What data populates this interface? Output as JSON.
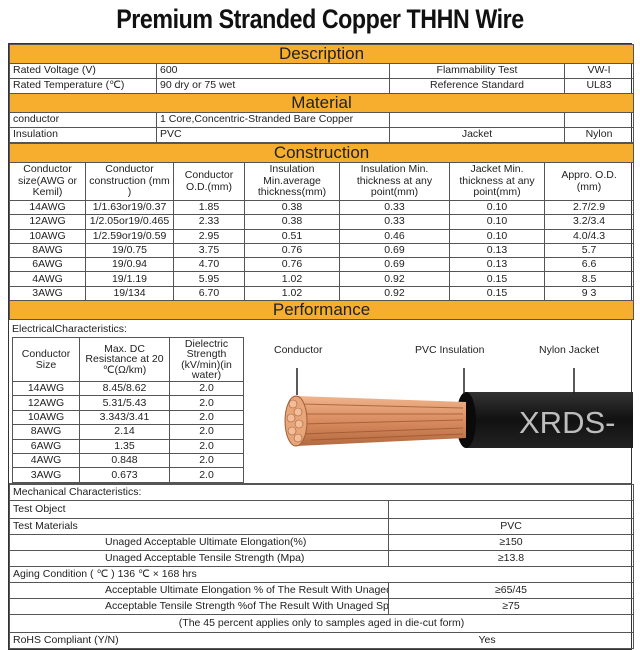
{
  "title": "Premium Stranded Copper THHN Wire",
  "description": {
    "header": "Description",
    "rows": [
      [
        "Rated Voltage (V)",
        "600",
        "Flammability Test",
        "VW-I"
      ],
      [
        "Rated Temperature (℃)",
        "90 dry or 75 wet",
        "Reference Standard",
        "UL83"
      ]
    ]
  },
  "material": {
    "header": "Material",
    "rows": [
      [
        "conductor",
        "1 Core,Concentric-Stranded Bare Copper",
        "",
        ""
      ],
      [
        "Insulation",
        "PVC",
        "Jacket",
        "Nylon"
      ]
    ]
  },
  "construction": {
    "header": "Construction",
    "columns": [
      "Conductor size(AWG or Kemil)",
      "Conductor construction (mm )",
      "Conductor O.D.(mm)",
      "Insulation Min.average thickness(mm)",
      "Insulation Min. thickness at any point(mm)",
      "Jacket Min. thickness at any point(mm)",
      "Appro. O.D. (mm)"
    ],
    "rows": [
      [
        "14AWG",
        "1/1.63or19/0.37",
        "1.85",
        "0.38",
        "0.33",
        "0.10",
        "2.7/2.9"
      ],
      [
        "12AWG",
        "1/2.05or19/0.465",
        "2.33",
        "0.38",
        "0.33",
        "0.10",
        "3.2/3.4"
      ],
      [
        "10AWG",
        "1/2.59or19/0.59",
        "2.95",
        "0.51",
        "0.46",
        "0.10",
        "4.0/4.3"
      ],
      [
        "8AWG",
        "19/0.75",
        "3.75",
        "0.76",
        "0.69",
        "0.13",
        "5.7"
      ],
      [
        "6AWG",
        "19/0.94",
        "4.70",
        "0.76",
        "0.69",
        "0.13",
        "6.6"
      ],
      [
        "4AWG",
        "19/1.19",
        "5.95",
        "1.02",
        "0.92",
        "0.15",
        "8.5"
      ],
      [
        "3AWG",
        "19/134",
        "6.70",
        "1.02",
        "0.92",
        "0.15",
        "9 3"
      ]
    ]
  },
  "performance": {
    "header": "Performance",
    "electrical_label": "ElectricalCharacteristics:",
    "electrical_columns": [
      "Conductor Size",
      "Max. DC Resistance at 20 ℃(Ω/km)",
      "Dielectric Strength (kV/min)(in water)"
    ],
    "electrical_rows": [
      [
        "14AWG",
        "8.45/8.62",
        "2.0"
      ],
      [
        "12AWG",
        "5.31/5.43",
        "2.0"
      ],
      [
        "10AWG",
        "3.343/3.41",
        "2.0"
      ],
      [
        "8AWG",
        "2.14",
        "2.0"
      ],
      [
        "6AWG",
        "1.35",
        "2.0"
      ],
      [
        "4AWG",
        "0.848",
        "2.0"
      ],
      [
        "3AWG",
        "0.673",
        "2.0"
      ]
    ],
    "image_labels": {
      "conductor": "Conductor",
      "insulation": "PVC Insulation",
      "jacket": "Nylon Jacket",
      "print": "XRDS-"
    }
  },
  "mechanical": {
    "label": "Mechanical Characteristics:",
    "test_object": "Test Object",
    "test_materials": "Test Materials",
    "material_value": "PVC",
    "unaged": [
      [
        "Unaged Acceptable Ultimate Elongation(%)",
        "≥150"
      ],
      [
        "Unaged Acceptable Tensile Strength (Mpa)",
        "≥13.8"
      ]
    ],
    "aging_condition": "Aging Condition ( ℃ ) 136 ℃ × 168 hrs",
    "aged": [
      [
        "Acceptable Ultimate Elongation % of The Result With Unaged Specimen",
        "≥65/45"
      ],
      [
        "Acceptable Tensile Strength %of The Result With Unaged Specimens",
        "≥75"
      ]
    ],
    "note": "(The 45 percent applies only to samples aged in die-cut form)",
    "rohs_label": "RoHS Compliant (Y/N)",
    "rohs_value": "Yes"
  },
  "colors": {
    "section_header": "#f7ae2f",
    "copper": "#d98c5f",
    "jacket": "#1a1a1a"
  }
}
